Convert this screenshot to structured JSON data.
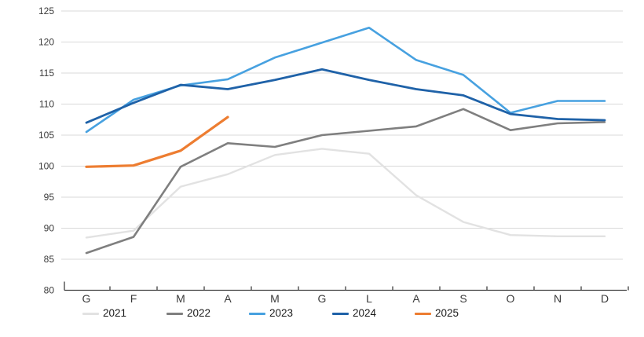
{
  "chart_data": {
    "type": "line",
    "title": "",
    "xlabel": "",
    "ylabel": "",
    "x_categories": [
      "G",
      "F",
      "M",
      "A",
      "M",
      "G",
      "L",
      "A",
      "S",
      "O",
      "N",
      "D"
    ],
    "y_axis": {
      "min": 80,
      "max": 125,
      "step": 5
    },
    "grid": true,
    "legend_position": "bottom",
    "colors": {
      "gridline": "#d9d9d9",
      "axis": "#404040",
      "label": "#3a3a3a"
    },
    "series": [
      {
        "name": "2021",
        "color": "#e2e2e2",
        "values": [
          88.5,
          89.6,
          96.7,
          98.7,
          101.8,
          102.8,
          102.0,
          95.3,
          91.0,
          88.9,
          88.7,
          88.7
        ]
      },
      {
        "name": "2022",
        "color": "#7f7f7f",
        "values": [
          86.0,
          88.6,
          99.9,
          103.7,
          103.1,
          105.0,
          105.7,
          106.4,
          109.2,
          105.8,
          106.9,
          107.1
        ]
      },
      {
        "name": "2023",
        "color": "#47a1e0",
        "values": [
          105.5,
          110.7,
          113.0,
          114.0,
          117.5,
          119.9,
          122.3,
          117.1,
          114.7,
          108.6,
          110.5,
          110.5
        ]
      },
      {
        "name": "2024",
        "color": "#1f62a8",
        "values": [
          107.0,
          110.2,
          113.1,
          112.4,
          113.9,
          115.6,
          113.9,
          112.4,
          111.4,
          108.4,
          107.6,
          107.4
        ]
      },
      {
        "name": "2025",
        "color": "#ed7d31",
        "values": [
          99.9,
          100.1,
          102.5,
          107.9
        ]
      }
    ]
  }
}
